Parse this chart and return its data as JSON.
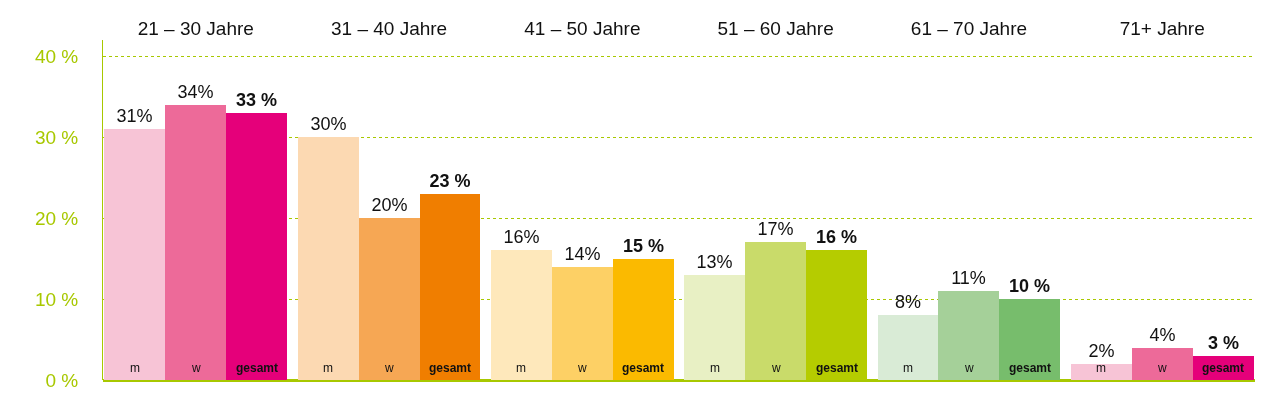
{
  "chart_data": {
    "type": "bar",
    "categories": [
      "21 – 30 Jahre",
      "31 – 40 Jahre",
      "41 – 50 Jahre",
      "51 – 60 Jahre",
      "61 – 70 Jahre",
      "71+ Jahre"
    ],
    "series": [
      {
        "name": "m",
        "colors": [
          "#f7c4d6",
          "#fcd9b2",
          "#fee8bb",
          "#e8f0c4",
          "#d9ebd6",
          "#f7c4d6"
        ],
        "values": [
          31,
          30,
          16,
          13,
          8,
          2
        ],
        "value_labels": [
          "31%",
          "30%",
          "16%",
          "13%",
          "8%",
          "2%"
        ]
      },
      {
        "name": "w",
        "colors": [
          "#ed6a99",
          "#f6a754",
          "#fdd065",
          "#c9db6a",
          "#a5d099",
          "#ed6a99"
        ],
        "values": [
          34,
          20,
          14,
          17,
          11,
          4
        ],
        "value_labels": [
          "34%",
          "20%",
          "14%",
          "17%",
          "11%",
          "4%"
        ]
      },
      {
        "name": "gesamt",
        "colors": [
          "#e5007a",
          "#f07e00",
          "#fbba00",
          "#b5cc00",
          "#77bd6c",
          "#e5007a"
        ],
        "values": [
          33,
          23,
          15,
          16,
          10,
          3
        ],
        "value_labels": [
          "33 %",
          "23 %",
          "15 %",
          "16 %",
          "10 %",
          "3 %"
        ]
      }
    ],
    "ylim": [
      0,
      42
    ],
    "yticks": [
      {
        "value": 0,
        "label": "0 %"
      },
      {
        "value": 10,
        "label": "10 %"
      },
      {
        "value": 20,
        "label": "20 %"
      },
      {
        "value": 30,
        "label": "30 %"
      },
      {
        "value": 40,
        "label": "40 %"
      }
    ],
    "grid": "y",
    "legend": false
  }
}
